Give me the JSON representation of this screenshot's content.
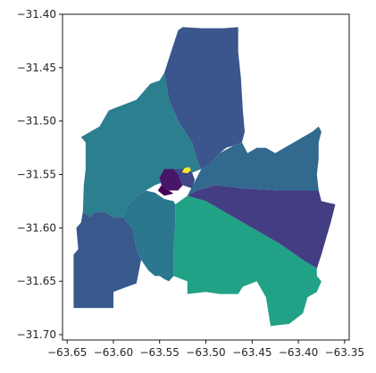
{
  "chart_data": {
    "type": "choropleth",
    "title": "",
    "xlabel": "",
    "ylabel": "",
    "xlim": [
      -63.655,
      -63.345
    ],
    "ylim": [
      -31.705,
      -31.4
    ],
    "x_ticks": [
      -63.65,
      -63.6,
      -63.55,
      -63.5,
      -63.45,
      -63.4,
      -63.35
    ],
    "y_ticks": [
      -31.4,
      -31.45,
      -31.5,
      -31.55,
      -31.6,
      -31.65,
      -31.7
    ],
    "x_tick_labels": [
      "−63.65",
      "−63.60",
      "−63.55",
      "−63.50",
      "−63.45",
      "−63.40",
      "−63.35"
    ],
    "y_tick_labels": [
      "−31.40",
      "−31.45",
      "−31.50",
      "−31.55",
      "−31.60",
      "−31.65",
      "−31.70"
    ],
    "colormap": "viridis",
    "regions": [
      {
        "id": "north",
        "color": "#3b568c",
        "polygon": [
          [
            -63.53,
            -31.415
          ],
          [
            -63.525,
            -31.412
          ],
          [
            -63.505,
            -31.413
          ],
          [
            -63.48,
            -31.413
          ],
          [
            -63.465,
            -31.412
          ],
          [
            -63.465,
            -31.435
          ],
          [
            -63.462,
            -31.46
          ],
          [
            -63.46,
            -31.49
          ],
          [
            -63.458,
            -31.51
          ],
          [
            -63.461,
            -31.52
          ],
          [
            -63.47,
            -31.523
          ],
          [
            -63.478,
            -31.525
          ],
          [
            -63.485,
            -31.53
          ],
          [
            -63.495,
            -31.54
          ],
          [
            -63.505,
            -31.545
          ],
          [
            -63.51,
            -31.535
          ],
          [
            -63.515,
            -31.52
          ],
          [
            -63.53,
            -31.5
          ],
          [
            -63.54,
            -31.48
          ],
          [
            -63.545,
            -31.455
          ]
        ]
      },
      {
        "id": "northwest",
        "color": "#2c7f8e",
        "polygon": [
          [
            -63.545,
            -31.455
          ],
          [
            -63.54,
            -31.48
          ],
          [
            -63.53,
            -31.5
          ],
          [
            -63.515,
            -31.52
          ],
          [
            -63.51,
            -31.535
          ],
          [
            -63.505,
            -31.545
          ],
          [
            -63.52,
            -31.55
          ],
          [
            -63.54,
            -31.555
          ],
          [
            -63.555,
            -31.56
          ],
          [
            -63.565,
            -31.565
          ],
          [
            -63.575,
            -31.57
          ],
          [
            -63.585,
            -31.58
          ],
          [
            -63.59,
            -31.59
          ],
          [
            -63.6,
            -31.59
          ],
          [
            -63.61,
            -31.585
          ],
          [
            -63.62,
            -31.585
          ],
          [
            -63.625,
            -31.59
          ],
          [
            -63.633,
            -31.585
          ],
          [
            -63.632,
            -31.56
          ],
          [
            -63.63,
            -31.545
          ],
          [
            -63.63,
            -31.52
          ],
          [
            -63.635,
            -31.515
          ],
          [
            -63.625,
            -31.51
          ],
          [
            -63.615,
            -31.505
          ],
          [
            -63.605,
            -31.49
          ],
          [
            -63.59,
            -31.485
          ],
          [
            -63.575,
            -31.48
          ],
          [
            -63.565,
            -31.47
          ],
          [
            -63.56,
            -31.465
          ],
          [
            -63.55,
            -31.462
          ]
        ]
      },
      {
        "id": "east",
        "color": "#32698e",
        "polygon": [
          [
            -63.505,
            -31.545
          ],
          [
            -63.495,
            -31.54
          ],
          [
            -63.485,
            -31.53
          ],
          [
            -63.47,
            -31.523
          ],
          [
            -63.461,
            -31.52
          ],
          [
            -63.455,
            -31.53
          ],
          [
            -63.445,
            -31.525
          ],
          [
            -63.435,
            -31.525
          ],
          [
            -63.425,
            -31.53
          ],
          [
            -63.415,
            -31.525
          ],
          [
            -63.405,
            -31.52
          ],
          [
            -63.395,
            -31.515
          ],
          [
            -63.385,
            -31.51
          ],
          [
            -63.378,
            -31.505
          ],
          [
            -63.375,
            -31.51
          ],
          [
            -63.378,
            -31.52
          ],
          [
            -63.378,
            -31.535
          ],
          [
            -63.38,
            -31.55
          ],
          [
            -63.378,
            -31.565
          ],
          [
            -63.39,
            -31.565
          ],
          [
            -63.42,
            -31.565
          ],
          [
            -63.46,
            -31.563
          ],
          [
            -63.49,
            -31.56
          ],
          [
            -63.51,
            -31.565
          ],
          [
            -63.52,
            -31.57
          ]
        ]
      },
      {
        "id": "southeast",
        "color": "#433d84",
        "polygon": [
          [
            -63.52,
            -31.57
          ],
          [
            -63.51,
            -31.565
          ],
          [
            -63.49,
            -31.56
          ],
          [
            -63.46,
            -31.563
          ],
          [
            -63.42,
            -31.565
          ],
          [
            -63.39,
            -31.565
          ],
          [
            -63.378,
            -31.565
          ],
          [
            -63.375,
            -31.575
          ],
          [
            -63.36,
            -31.578
          ],
          [
            -63.365,
            -31.595
          ],
          [
            -63.37,
            -31.61
          ],
          [
            -63.375,
            -31.625
          ],
          [
            -63.38,
            -31.638
          ],
          [
            -63.395,
            -31.63
          ],
          [
            -63.42,
            -31.615
          ],
          [
            -63.45,
            -31.6
          ],
          [
            -63.48,
            -31.585
          ],
          [
            -63.5,
            -31.575
          ]
        ]
      },
      {
        "id": "south",
        "color": "#21a185",
        "polygon": [
          [
            -63.52,
            -31.57
          ],
          [
            -63.5,
            -31.575
          ],
          [
            -63.48,
            -31.585
          ],
          [
            -63.45,
            -31.6
          ],
          [
            -63.42,
            -31.615
          ],
          [
            -63.395,
            -31.63
          ],
          [
            -63.38,
            -31.638
          ],
          [
            -63.38,
            -31.645
          ],
          [
            -63.375,
            -31.65
          ],
          [
            -63.38,
            -31.66
          ],
          [
            -63.39,
            -31.665
          ],
          [
            -63.395,
            -31.68
          ],
          [
            -63.41,
            -31.69
          ],
          [
            -63.43,
            -31.692
          ],
          [
            -63.435,
            -31.665
          ],
          [
            -63.445,
            -31.65
          ],
          [
            -63.46,
            -31.655
          ],
          [
            -63.465,
            -31.662
          ],
          [
            -63.485,
            -31.662
          ],
          [
            -63.5,
            -31.66
          ],
          [
            -63.52,
            -31.662
          ],
          [
            -63.52,
            -31.65
          ],
          [
            -63.535,
            -31.645
          ],
          [
            -63.535,
            -31.62
          ],
          [
            -63.533,
            -31.595
          ],
          [
            -63.533,
            -31.578
          ]
        ]
      },
      {
        "id": "southwest",
        "color": "#2a778e",
        "polygon": [
          [
            -63.533,
            -31.578
          ],
          [
            -63.535,
            -31.575
          ],
          [
            -63.545,
            -31.573
          ],
          [
            -63.555,
            -31.567
          ],
          [
            -63.565,
            -31.565
          ],
          [
            -63.575,
            -31.57
          ],
          [
            -63.585,
            -31.58
          ],
          [
            -63.59,
            -31.59
          ],
          [
            -63.585,
            -31.595
          ],
          [
            -63.58,
            -31.6
          ],
          [
            -63.578,
            -31.605
          ],
          [
            -63.575,
            -31.62
          ],
          [
            -63.57,
            -31.63
          ],
          [
            -63.562,
            -31.64
          ],
          [
            -63.555,
            -31.645
          ],
          [
            -63.55,
            -31.645
          ],
          [
            -63.545,
            -31.648
          ],
          [
            -63.54,
            -31.65
          ],
          [
            -63.535,
            -31.645
          ],
          [
            -63.535,
            -31.62
          ],
          [
            -63.533,
            -31.595
          ]
        ]
      },
      {
        "id": "far-southwest",
        "color": "#38598c",
        "polygon": [
          [
            -63.585,
            -31.595
          ],
          [
            -63.59,
            -31.59
          ],
          [
            -63.6,
            -31.59
          ],
          [
            -63.61,
            -31.585
          ],
          [
            -63.62,
            -31.585
          ],
          [
            -63.625,
            -31.59
          ],
          [
            -63.633,
            -31.585
          ],
          [
            -63.635,
            -31.595
          ],
          [
            -63.64,
            -31.6
          ],
          [
            -63.638,
            -31.62
          ],
          [
            -63.643,
            -31.625
          ],
          [
            -63.643,
            -31.675
          ],
          [
            -63.6,
            -31.675
          ],
          [
            -63.6,
            -31.66
          ],
          [
            -63.585,
            -31.655
          ],
          [
            -63.575,
            -31.652
          ],
          [
            -63.57,
            -31.63
          ],
          [
            -63.575,
            -31.62
          ],
          [
            -63.578,
            -31.605
          ],
          [
            -63.58,
            -31.6
          ]
        ]
      },
      {
        "id": "center-a",
        "color": "#481668",
        "polygon": [
          [
            -63.545,
            -31.545
          ],
          [
            -63.535,
            -31.545
          ],
          [
            -63.53,
            -31.55
          ],
          [
            -63.525,
            -31.56
          ],
          [
            -63.53,
            -31.565
          ],
          [
            -63.54,
            -31.565
          ],
          [
            -63.548,
            -31.56
          ],
          [
            -63.55,
            -31.553
          ]
        ]
      },
      {
        "id": "center-b",
        "color": "#3f4788",
        "polygon": [
          [
            -63.535,
            -31.545
          ],
          [
            -63.525,
            -31.545
          ],
          [
            -63.515,
            -31.548
          ],
          [
            -63.512,
            -31.555
          ],
          [
            -63.515,
            -31.563
          ],
          [
            -63.525,
            -31.56
          ],
          [
            -63.53,
            -31.55
          ]
        ]
      },
      {
        "id": "center-c",
        "color": "#440154",
        "polygon": [
          [
            -63.548,
            -31.56
          ],
          [
            -63.54,
            -31.565
          ],
          [
            -63.535,
            -31.568
          ],
          [
            -63.545,
            -31.57
          ],
          [
            -63.552,
            -31.565
          ]
        ]
      },
      {
        "id": "center-hotspot",
        "color": "#fde725",
        "polygon": [
          [
            -63.526,
            -31.548
          ],
          [
            -63.523,
            -31.544
          ],
          [
            -63.518,
            -31.543
          ],
          [
            -63.516,
            -31.546
          ],
          [
            -63.52,
            -31.549
          ]
        ]
      }
    ]
  }
}
